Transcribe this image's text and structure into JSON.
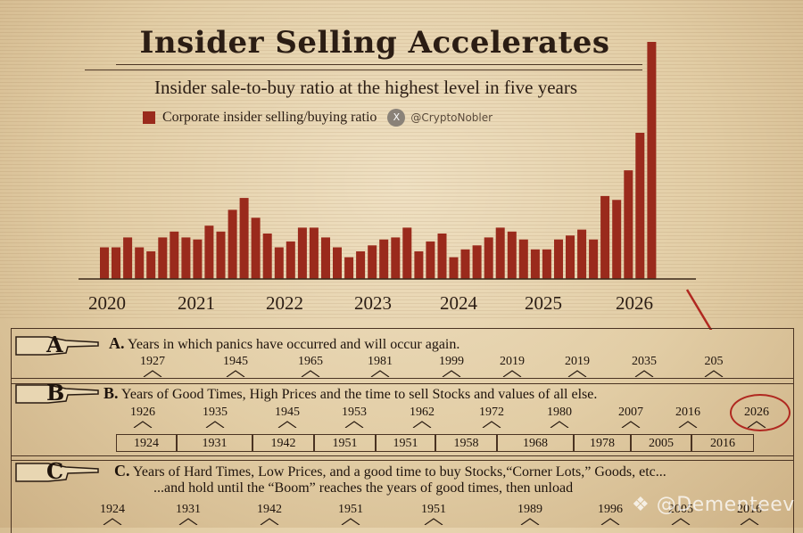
{
  "chart_data": {
    "type": "bar",
    "title": "Insider Selling Accelerates",
    "subtitle": "Insider sale-to-buy ratio at the highest level in five years",
    "xlabel": "",
    "ylabel": "",
    "x_ticks": [
      "2020",
      "2021",
      "2022",
      "2023",
      "2024",
      "2025",
      "2026"
    ],
    "series": [
      {
        "name": "Corporate insider selling/buying ratio",
        "color": "#9a2a1c",
        "values": [
          1.6,
          1.6,
          2.1,
          1.6,
          1.4,
          2.1,
          2.4,
          2.1,
          2.0,
          2.7,
          2.4,
          3.5,
          4.1,
          3.1,
          2.3,
          1.6,
          1.9,
          2.6,
          2.6,
          2.1,
          1.6,
          1.1,
          1.4,
          1.7,
          2.0,
          2.1,
          2.6,
          1.4,
          1.9,
          2.3,
          1.1,
          1.5,
          1.7,
          2.1,
          2.6,
          2.4,
          2.0,
          1.5,
          1.5,
          2.0,
          2.2,
          2.5,
          2.0,
          4.2,
          4.0,
          5.5,
          7.4,
          12.0
        ]
      }
    ],
    "grid": false,
    "legend_position": "top-left"
  },
  "source_handle": "@CryptoNobler",
  "x_icon": "x-logo-icon",
  "x_icon_label": "X",
  "rows": {
    "a": {
      "letter": "A",
      "label": "A.",
      "text": "Years in which panics have occurred and will occur again.",
      "years": [
        "1927",
        "1945",
        "1965",
        "1981",
        "1999",
        "2019",
        "2019",
        "2035",
        "205"
      ]
    },
    "b": {
      "letter": "B",
      "label": "B.",
      "text": "Years of Good Times, High Prices and the time to sell Stocks and values of all else.",
      "years": [
        "1926",
        "1935",
        "1945",
        "1953",
        "1962",
        "1972",
        "1980",
        "2007",
        "2016",
        "2026"
      ],
      "boxes": [
        "1924",
        "1931",
        "1942",
        "1951",
        "1951",
        "1958",
        "1968",
        "1978",
        "2005",
        "2016"
      ]
    },
    "c": {
      "letter": "C",
      "label": "C.",
      "text": "Years of Hard Times, Low Prices, and a good time to buy Stocks,“Corner Lots,” Goods, etc...",
      "text2": "...and hold until the  “Boom” reaches the years of good times, then unload",
      "years": [
        "1924",
        "1931",
        "1942",
        "1951",
        "1951",
        "1989",
        "1996",
        "2005",
        "2016"
      ]
    }
  },
  "watermark": "❖ @Dementeev",
  "annotation": {
    "highlight": "2026",
    "arrow_color": "#b02820"
  }
}
